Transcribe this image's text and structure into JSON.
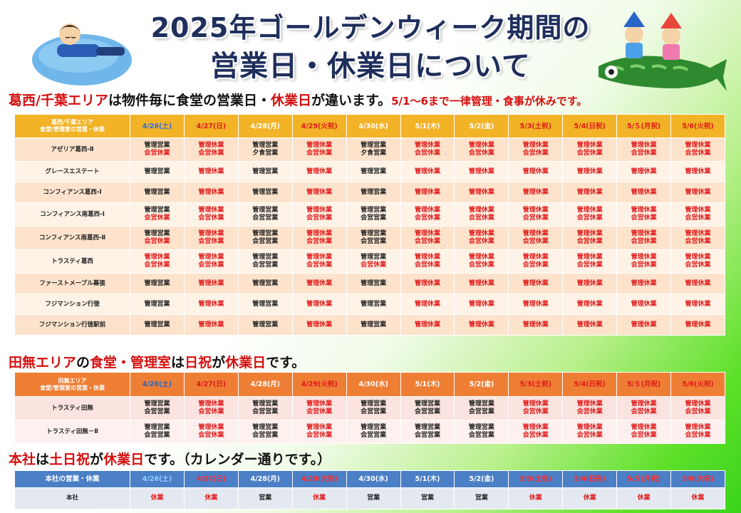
{
  "title": {
    "line1": "2025年ゴールデンウィーク期間の",
    "line2": "営業日・休業日について"
  },
  "section1": {
    "h_a": "葛西/千葉エリア",
    "h_b": "は物件毎に食堂の営業日・",
    "h_c": "休業日",
    "h_d": "が違います。",
    "h_e": "5/1～6まで一律管理・食事が休みです。"
  },
  "section2": {
    "h_a": "田無エリア",
    "h_b": "の",
    "h_c": "食堂・管理室",
    "h_d": "は",
    "h_e": "日祝",
    "h_f": "が",
    "h_g": "休業日",
    "h_h": "です。"
  },
  "section3": {
    "h_a": "本社",
    "h_b": "は",
    "h_c": "土日祝",
    "h_d": "が",
    "h_e": "休業日",
    "h_f": "です。（カレンダー通りです。）"
  },
  "dates": [
    "4/26(土)",
    "4/27(日)",
    "4/28(月)",
    "4/29(火祝)",
    "4/30(水)",
    "5/1(木)",
    "5/2(金)",
    "5/3(土祝)",
    "5/4(日祝)",
    "5/５(月祝)",
    "5/6(火祝)"
  ],
  "date_colors": [
    "blue",
    "red",
    "normal",
    "red",
    "normal",
    "normal",
    "normal",
    "red",
    "red",
    "red",
    "red"
  ],
  "table1": {
    "header_l1": "葛西/千葉エリア",
    "header_l2": "食堂/管理室の営業・休業",
    "rows": [
      {
        "name": "アゼリア葛西-Ⅱ",
        "cells": [
          "管理営業|会営休業",
          "管理休業|会営休業",
          "管理営業|夕食営業",
          "管理休業|会営休業",
          "管理営業|夕食営業",
          "管理休業|会営休業",
          "管理休業|会営休業",
          "管理休業|会営休業",
          "管理休業|会営休業",
          "管理休業|会営休業",
          "管理休業|会営休業"
        ]
      },
      {
        "name": "グレースエステート",
        "cells": [
          "管理営業",
          "管理休業",
          "管理営業",
          "管理休業",
          "管理営業",
          "管理休業",
          "管理休業",
          "管理休業",
          "管理休業",
          "管理休業",
          "管理休業"
        ]
      },
      {
        "name": "コンフィアンス葛西-Ⅰ",
        "cells": [
          "管理営業",
          "管理休業",
          "管理営業",
          "管理休業",
          "管理営業",
          "管理休業",
          "管理休業",
          "管理休業",
          "管理休業",
          "管理休業",
          "管理休業"
        ]
      },
      {
        "name": "コンフィアンス南葛西-Ⅰ",
        "cells": [
          "管理営業|会営休業",
          "管理休業|会営休業",
          "管理営業|会営営業",
          "管理休業|会営休業",
          "管理営業|会営営業",
          "管理休業|会営休業",
          "管理休業|会営休業",
          "管理休業|会営休業",
          "管理休業|会営休業",
          "管理休業|会営休業",
          "管理休業|会営休業"
        ]
      },
      {
        "name": "コンフィアンス南葛西-Ⅱ",
        "cells": [
          "管理営業|会営休業",
          "管理休業|会営休業",
          "管理営業|会営営業",
          "管理休業|会営休業",
          "管理営業|会営営業",
          "管理休業|会営休業",
          "管理休業|会営休業",
          "管理休業|会営休業",
          "管理休業|会営休業",
          "管理休業|会営休業",
          "管理休業|会営休業"
        ]
      },
      {
        "name": "トラスティ葛西",
        "cells": [
          "管理休業|会営休業",
          "管理休業|会営休業",
          "管理営業|会営営業",
          "管理休業|会営休業",
          "管理営業|会営休業",
          "管理休業|会営休業",
          "管理休業|会営休業",
          "管理休業|会営休業",
          "管理休業|会営休業",
          "管理休業|会営休業",
          "管理休業|会営休業"
        ]
      },
      {
        "name": "ファーストメープル幕張",
        "cells": [
          "管理営業",
          "管理休業",
          "管理営業",
          "管理休業",
          "管理営業",
          "管理休業",
          "管理休業",
          "管理休業",
          "管理休業",
          "管理休業",
          "管理休業"
        ]
      },
      {
        "name": "フジマンション行徳",
        "cells": [
          "管理営業",
          "管理休業",
          "管理営業",
          "管理休業",
          "管理営業",
          "管理休業",
          "管理休業",
          "管理休業",
          "管理休業",
          "管理休業",
          "管理休業"
        ]
      },
      {
        "name": "フジマンション行徳駅前",
        "cells": [
          "管理営業",
          "管理休業",
          "管理営業",
          "管理休業",
          "管理営業",
          "管理休業",
          "管理休業",
          "管理休業",
          "管理休業",
          "管理休業",
          "管理休業"
        ]
      }
    ]
  },
  "table2": {
    "header_l1": "田無エリア",
    "header_l2": "食堂/管理室の営業・休業",
    "rows": [
      {
        "name": "トラスティ田無",
        "cells": [
          "管理営業|会営営業",
          "管理休業|会営休業",
          "管理営業|会営営業",
          "管理休業|会営休業",
          "管理営業|会営営業",
          "管理営業|会営営業",
          "管理営業|会営営業",
          "管理休業|会営休業",
          "管理休業|会営休業",
          "管理休業|会営休業",
          "管理休業|会営休業"
        ]
      },
      {
        "name": "トラスティ田無－Ⅱ",
        "cells": [
          "管理営業|会営営業",
          "管理休業|会営休業",
          "管理営業|会営営業",
          "管理休業|会営休業",
          "管理営業|会営営業",
          "管理営業|会営営業",
          "管理営業|会営営業",
          "管理休業|会営休業",
          "管理休業|会営休業",
          "管理休業|会営休業",
          "管理休業|会営休業"
        ]
      }
    ]
  },
  "table3": {
    "header": "本社の営業・休業",
    "rows": [
      {
        "name": "本社",
        "cells": [
          "休業",
          "休業",
          "営業",
          "休業",
          "営業",
          "営業",
          "営業",
          "休業",
          "休業",
          "休業",
          "休業"
        ]
      }
    ]
  },
  "colors": {
    "closed": "#e01818",
    "open": "#222222",
    "t1_header": "#f2b327",
    "t2_header": "#ef7e35",
    "t3_header": "#4b7fc6",
    "title": "#1f2f5c"
  }
}
